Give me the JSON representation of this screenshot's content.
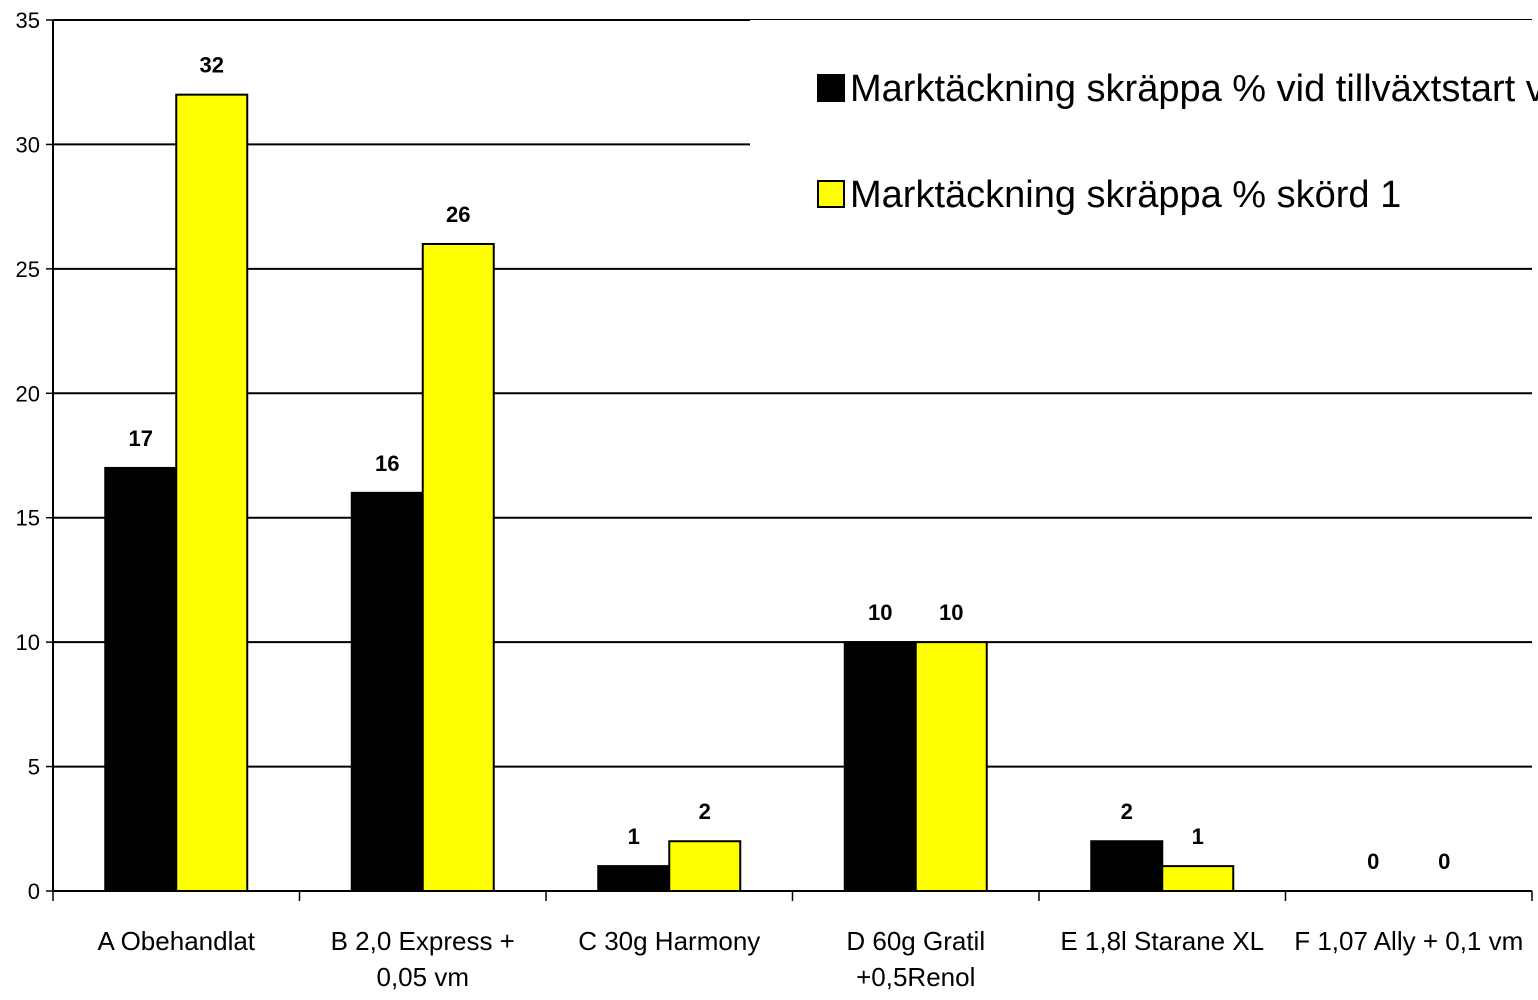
{
  "chart_data": {
    "type": "bar",
    "categories": [
      [
        "A Obehandlat"
      ],
      [
        "B 2,0 Express +",
        "0,05 vm"
      ],
      [
        "C 30g Harmony"
      ],
      [
        "D 60g Gratil",
        "+0,5Renol"
      ],
      [
        "E 1,8l Starane XL"
      ],
      [
        "F 1,07 Ally + 0,1 vm"
      ]
    ],
    "series": [
      {
        "name": "Marktäckning skräppa % vid tillväxtstart vår",
        "color": "#000000",
        "values": [
          17,
          16,
          1,
          10,
          2,
          0
        ]
      },
      {
        "name": "Marktäckning skräppa % skörd 1",
        "color": "#ffff00",
        "values": [
          32,
          26,
          2,
          10,
          1,
          0
        ]
      }
    ],
    "ylim": [
      0,
      35
    ],
    "yticks": [
      0,
      5,
      10,
      15,
      20,
      25,
      30,
      35
    ],
    "grid": true,
    "legend_position": "top-right",
    "title": "",
    "xlabel": "",
    "ylabel": ""
  }
}
